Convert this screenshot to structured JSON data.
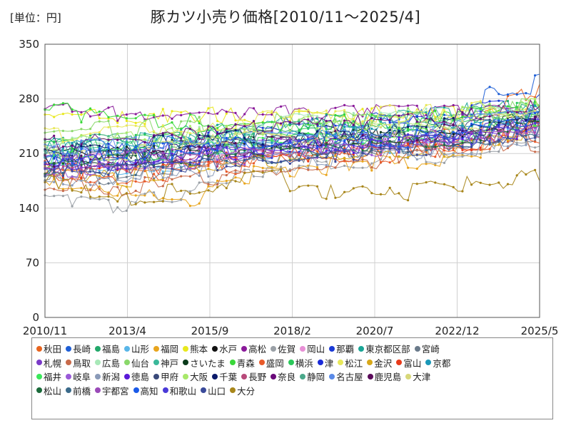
{
  "unit_label": "[単位：円]",
  "chart_data": {
    "type": "line",
    "title": "豚カツ小売り価格[2010/11～2025/4]",
    "xlabel": "",
    "ylabel": "",
    "ylim": [
      0,
      350
    ],
    "yticks": [
      "0",
      "70",
      "140",
      "210",
      "280",
      "350"
    ],
    "xticks": [
      "2010/11",
      "2013/4",
      "2015/9",
      "2018/2",
      "2020/7",
      "2022/12",
      "2025/5"
    ],
    "x_start": "2010-11",
    "x_end": "2025-05",
    "grid": true,
    "legend_position": "bottom",
    "series": [
      {
        "name": "秋田",
        "color": "#e8641e",
        "keypoints": [
          190,
          185,
          195,
          205,
          215,
          225,
          240,
          300
        ]
      },
      {
        "name": "長崎",
        "color": "#1f5fd6",
        "keypoints": [
          200,
          205,
          215,
          230,
          240,
          250,
          270,
          320
        ]
      },
      {
        "name": "福島",
        "color": "#22a86a",
        "keypoints": [
          230,
          228,
          235,
          240,
          245,
          250,
          262,
          270
        ]
      },
      {
        "name": "山形",
        "color": "#59b6e8",
        "keypoints": [
          195,
          190,
          200,
          210,
          215,
          220,
          235,
          250
        ]
      },
      {
        "name": "福岡",
        "color": "#e8a51e",
        "keypoints": [
          175,
          160,
          150,
          185,
          195,
          200,
          215,
          245
        ]
      },
      {
        "name": "熊本",
        "color": "#e8e81e",
        "keypoints": [
          258,
          258,
          258,
          258,
          260,
          260,
          262,
          255
        ]
      },
      {
        "name": "水戸",
        "color": "#111111",
        "keypoints": [
          210,
          212,
          218,
          222,
          228,
          232,
          240,
          255
        ]
      },
      {
        "name": "高松",
        "color": "#8a1a9a",
        "keypoints": [
          262,
          262,
          262,
          262,
          262,
          262,
          262,
          265
        ]
      },
      {
        "name": "佐賀",
        "color": "#9aa0a6",
        "keypoints": [
          150,
          140,
          165,
          185,
          200,
          205,
          215,
          230
        ]
      },
      {
        "name": "岡山",
        "color": "#e88fd6",
        "keypoints": [
          200,
          200,
          210,
          215,
          220,
          225,
          235,
          255
        ]
      },
      {
        "name": "那覇",
        "color": "#1a3ad6",
        "keypoints": [
          210,
          215,
          230,
          245,
          250,
          255,
          265,
          280
        ]
      },
      {
        "name": "東京都区部",
        "color": "#1aa596",
        "keypoints": [
          220,
          222,
          235,
          245,
          250,
          255,
          265,
          275
        ]
      },
      {
        "name": "宮崎",
        "color": "#6a7a8a",
        "keypoints": [
          185,
          180,
          195,
          205,
          210,
          215,
          225,
          240
        ]
      },
      {
        "name": "札幌",
        "color": "#7a3ac8",
        "keypoints": [
          205,
          210,
          215,
          220,
          225,
          230,
          240,
          255
        ]
      },
      {
        "name": "鳥取",
        "color": "#c86a4a",
        "keypoints": [
          170,
          165,
          180,
          190,
          200,
          205,
          215,
          225
        ]
      },
      {
        "name": "広島",
        "color": "#a8e8b8",
        "keypoints": [
          225,
          228,
          235,
          245,
          250,
          255,
          262,
          270
        ]
      },
      {
        "name": "仙台",
        "color": "#8ad86a",
        "keypoints": [
          240,
          240,
          245,
          250,
          255,
          258,
          265,
          275
        ]
      },
      {
        "name": "神戸",
        "color": "#3ab89a",
        "keypoints": [
          215,
          218,
          225,
          230,
          235,
          240,
          250,
          262
        ]
      },
      {
        "name": "さいたま",
        "color": "#0a3a1a",
        "keypoints": [
          205,
          208,
          215,
          222,
          228,
          232,
          242,
          255
        ]
      },
      {
        "name": "青森",
        "color": "#3ad83a",
        "keypoints": [
          265,
          255,
          250,
          245,
          248,
          250,
          258,
          268
        ]
      },
      {
        "name": "盛岡",
        "color": "#e85a2a",
        "keypoints": [
          180,
          178,
          190,
          200,
          205,
          210,
          222,
          240
        ]
      },
      {
        "name": "横浜",
        "color": "#2ac85a",
        "keypoints": [
          220,
          222,
          230,
          238,
          242,
          246,
          255,
          268
        ]
      },
      {
        "name": "津",
        "color": "#1a2ad8",
        "keypoints": [
          200,
          205,
          212,
          218,
          222,
          225,
          235,
          250
        ]
      },
      {
        "name": "松江",
        "color": "#e8e85a",
        "keypoints": [
          235,
          238,
          245,
          255,
          258,
          260,
          265,
          270
        ]
      },
      {
        "name": "金沢",
        "color": "#d8a81a",
        "keypoints": [
          185,
          180,
          190,
          200,
          205,
          210,
          220,
          235
        ]
      },
      {
        "name": "富山",
        "color": "#e83a1a",
        "keypoints": [
          190,
          188,
          198,
          205,
          210,
          215,
          225,
          245
        ]
      },
      {
        "name": "京都",
        "color": "#1a98b8",
        "keypoints": [
          215,
          218,
          225,
          232,
          238,
          242,
          250,
          262
        ]
      },
      {
        "name": "福井",
        "color": "#3ae85a",
        "keypoints": [
          200,
          205,
          215,
          222,
          228,
          232,
          242,
          255
        ]
      },
      {
        "name": "岐阜",
        "color": "#9a5ad8",
        "keypoints": [
          190,
          192,
          200,
          208,
          212,
          218,
          228,
          240
        ]
      },
      {
        "name": "新潟",
        "color": "#8a9ab8",
        "keypoints": [
          180,
          178,
          188,
          198,
          205,
          210,
          220,
          232
        ]
      },
      {
        "name": "徳島",
        "color": "#5a1ad8",
        "keypoints": [
          200,
          200,
          210,
          215,
          220,
          224,
          232,
          245
        ]
      },
      {
        "name": "甲府",
        "color": "#3a4a7a",
        "keypoints": [
          210,
          212,
          220,
          228,
          232,
          236,
          245,
          258
        ]
      },
      {
        "name": "大阪",
        "color": "#a8e86a",
        "keypoints": [
          225,
          228,
          238,
          245,
          250,
          255,
          262,
          272
        ]
      },
      {
        "name": "千葉",
        "color": "#0a1a6a",
        "keypoints": [
          215,
          218,
          226,
          234,
          238,
          242,
          250,
          262
        ]
      },
      {
        "name": "長野",
        "color": "#b84a7a",
        "keypoints": [
          190,
          190,
          200,
          208,
          212,
          216,
          226,
          240
        ]
      },
      {
        "name": "奈良",
        "color": "#6a0a7a",
        "keypoints": [
          225,
          228,
          236,
          244,
          248,
          252,
          260,
          270
        ]
      },
      {
        "name": "静岡",
        "color": "#4aa88a",
        "keypoints": [
          205,
          208,
          216,
          224,
          228,
          232,
          242,
          255
        ]
      },
      {
        "name": "名古屋",
        "color": "#5a8ae8",
        "keypoints": [
          215,
          218,
          226,
          232,
          236,
          240,
          250,
          262
        ]
      },
      {
        "name": "鹿児島",
        "color": "#5a0a5a",
        "keypoints": [
          200,
          202,
          212,
          220,
          226,
          230,
          240,
          252
        ]
      },
      {
        "name": "大津",
        "color": "#d8d87a",
        "keypoints": [
          210,
          212,
          222,
          230,
          235,
          240,
          248,
          260
        ]
      },
      {
        "name": "松山",
        "color": "#1a6a3a",
        "keypoints": [
          195,
          198,
          206,
          214,
          218,
          222,
          232,
          246
        ]
      },
      {
        "name": "前橋",
        "color": "#3a6a8a",
        "keypoints": [
          190,
          190,
          200,
          208,
          212,
          216,
          226,
          240
        ]
      },
      {
        "name": "宇都宮",
        "color": "#9a4ab8",
        "keypoints": [
          200,
          200,
          210,
          218,
          222,
          226,
          236,
          250
        ]
      },
      {
        "name": "高知",
        "color": "#1a5ae8",
        "keypoints": [
          205,
          208,
          216,
          224,
          228,
          232,
          242,
          255
        ]
      },
      {
        "name": "和歌山",
        "color": "#4a3ad8",
        "keypoints": [
          195,
          198,
          206,
          214,
          218,
          222,
          232,
          246
        ]
      },
      {
        "name": "山口",
        "color": "#3a4a9a",
        "keypoints": [
          185,
          185,
          195,
          205,
          210,
          214,
          224,
          238
        ]
      },
      {
        "name": "大分",
        "color": "#a8861a",
        "keypoints": [
          175,
          150,
          165,
          180,
          160,
          160,
          170,
          180
        ]
      }
    ]
  },
  "legend_rows": [
    [
      "秋田",
      "長崎",
      "福島",
      "山形",
      "福岡",
      "熊本",
      "水戸",
      "高松",
      "佐賀",
      "岡山",
      "那覇",
      "東京都区部",
      "宮崎"
    ],
    [
      "札幌",
      "鳥取",
      "広島",
      "仙台",
      "神戸",
      "さいたま",
      "青森",
      "盛岡",
      "横浜",
      "津",
      "松江",
      "金沢",
      "富山",
      "京都"
    ],
    [
      "福井",
      "岐阜",
      "新潟",
      "徳島",
      "甲府",
      "大阪",
      "千葉",
      "長野",
      "奈良",
      "静岡",
      "名古屋",
      "鹿児島",
      "大津"
    ],
    [
      "松山",
      "前橋",
      "宇都宮",
      "高知",
      "和歌山",
      "山口",
      "大分"
    ]
  ]
}
